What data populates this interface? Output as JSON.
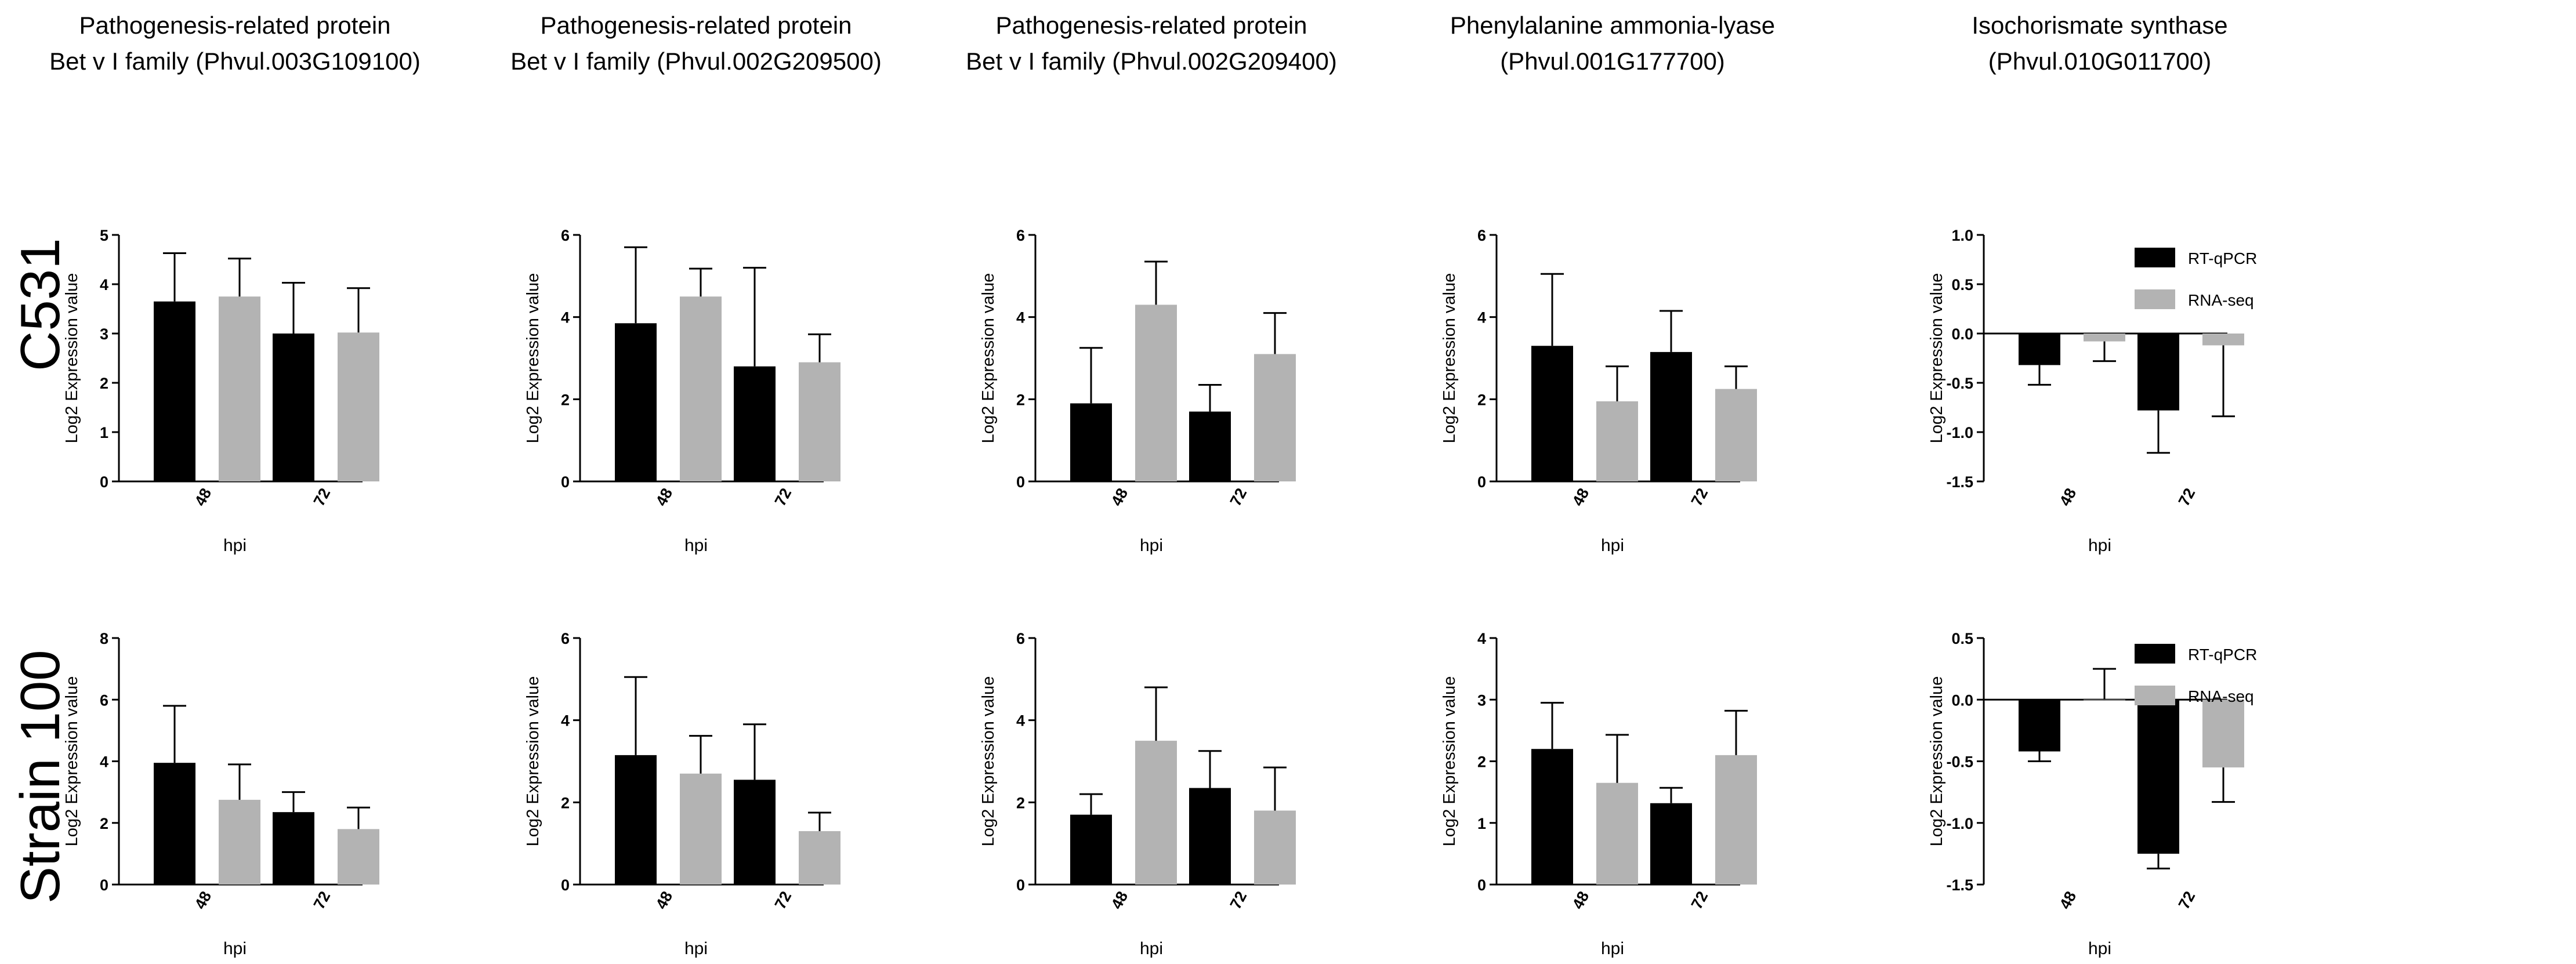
{
  "figure": {
    "rows": [
      "C531",
      "Strain 100"
    ],
    "xlabel": "hpi",
    "ylabel": "Log2 Expression value",
    "legend": [
      {
        "name": "RT-qPCR",
        "color": "#000000"
      },
      {
        "name": "RNA-seq",
        "color": "#b3b3b3"
      }
    ]
  },
  "chart_data": [
    {
      "type": "bar",
      "row": "C531",
      "col": 0,
      "title": "Pathogenesis-related protein Bet v I family (Phvul.003G109100)",
      "title_lines": [
        "Pathogenesis-related protein",
        "Bet v I family (Phvul.003G109100)"
      ],
      "categories": [
        "48",
        "72"
      ],
      "xlabel": "hpi",
      "ylabel": "Log2 Expression value",
      "ylim": [
        0,
        5
      ],
      "yticks": [
        0,
        1,
        2,
        3,
        4,
        5
      ],
      "ytick_labels": [
        "0",
        "1",
        "2",
        "3",
        "4",
        "5"
      ],
      "series": [
        {
          "name": "RT-qPCR",
          "values": [
            3.65,
            3.0
          ],
          "errors": [
            0.98,
            1.03
          ]
        },
        {
          "name": "RNA-seq",
          "values": [
            3.75,
            3.02
          ],
          "errors": [
            0.77,
            0.9
          ]
        }
      ]
    },
    {
      "type": "bar",
      "row": "C531",
      "col": 1,
      "title": "Pathogenesis-related protein Bet v I family (Phvul.002G209500)",
      "title_lines": [
        "Pathogenesis-related protein",
        "Bet v I family (Phvul.002G209500)"
      ],
      "categories": [
        "48",
        "72"
      ],
      "xlabel": "hpi",
      "ylabel": "Log2 Expression value",
      "ylim": [
        0,
        6
      ],
      "yticks": [
        0,
        2,
        4,
        6
      ],
      "ytick_labels": [
        "0",
        "2",
        "4",
        "6"
      ],
      "series": [
        {
          "name": "RT-qPCR",
          "values": [
            3.85,
            2.8
          ],
          "errors": [
            1.85,
            2.4
          ]
        },
        {
          "name": "RNA-seq",
          "values": [
            4.5,
            2.9
          ],
          "errors": [
            0.68,
            0.68
          ]
        }
      ]
    },
    {
      "type": "bar",
      "row": "C531",
      "col": 2,
      "title": "Pathogenesis-related protein Bet v I family (Phvul.002G209400)",
      "title_lines": [
        "Pathogenesis-related protein",
        "Bet v I family (Phvul.002G209400)"
      ],
      "categories": [
        "48",
        "72"
      ],
      "xlabel": "hpi",
      "ylabel": "Log2 Expression value",
      "ylim": [
        0,
        6
      ],
      "yticks": [
        0,
        2,
        4,
        6
      ],
      "ytick_labels": [
        "0",
        "2",
        "4",
        "6"
      ],
      "series": [
        {
          "name": "RT-qPCR",
          "values": [
            1.9,
            1.7
          ],
          "errors": [
            1.35,
            0.65
          ]
        },
        {
          "name": "RNA-seq",
          "values": [
            4.3,
            3.1
          ],
          "errors": [
            1.05,
            1.0
          ]
        }
      ]
    },
    {
      "type": "bar",
      "row": "C531",
      "col": 3,
      "title": "Phenylalanine ammonia-lyase (Phvul.001G177700)",
      "title_lines": [
        "Phenylalanine ammonia-lyase",
        "(Phvul.001G177700)"
      ],
      "categories": [
        "48",
        "72"
      ],
      "xlabel": "hpi",
      "ylabel": "Log2 Expression value",
      "ylim": [
        0,
        6
      ],
      "yticks": [
        0,
        2,
        4,
        6
      ],
      "ytick_labels": [
        "0",
        "2",
        "4",
        "6"
      ],
      "series": [
        {
          "name": "RT-qPCR",
          "values": [
            3.3,
            3.15
          ],
          "errors": [
            1.75,
            1.0
          ]
        },
        {
          "name": "RNA-seq",
          "values": [
            1.95,
            2.25
          ],
          "errors": [
            0.85,
            0.55
          ]
        }
      ]
    },
    {
      "type": "bar",
      "row": "C531",
      "col": 4,
      "title": "Isochorismate synthase (Phvul.010G011700)",
      "title_lines": [
        "Isochorismate synthase",
        "(Phvul.010G011700)"
      ],
      "categories": [
        "48",
        "72"
      ],
      "xlabel": "hpi",
      "ylabel": "Log2 Expression value",
      "ylim": [
        -1.5,
        1.0
      ],
      "yticks": [
        -1.5,
        -1.0,
        -0.5,
        0.0,
        0.5,
        1.0
      ],
      "ytick_labels": [
        "-1.5",
        "-1.0",
        "-0.5",
        "0.0",
        "0.5",
        "1.0"
      ],
      "series": [
        {
          "name": "RT-qPCR",
          "values": [
            -0.32,
            -0.78
          ],
          "errors": [
            0.2,
            0.43
          ]
        },
        {
          "name": "RNA-seq",
          "values": [
            -0.08,
            -0.12
          ],
          "errors": [
            0.2,
            0.72
          ]
        }
      ]
    },
    {
      "type": "bar",
      "row": "Strain 100",
      "col": 0,
      "title": "",
      "categories": [
        "48",
        "72"
      ],
      "xlabel": "hpi",
      "ylabel": "Log2 Expression value",
      "ylim": [
        0,
        8
      ],
      "yticks": [
        0,
        2,
        4,
        6,
        8
      ],
      "ytick_labels": [
        "0",
        "2",
        "4",
        "6",
        "8"
      ],
      "series": [
        {
          "name": "RT-qPCR",
          "values": [
            3.95,
            2.35
          ],
          "errors": [
            1.85,
            0.65
          ]
        },
        {
          "name": "RNA-seq",
          "values": [
            2.75,
            1.8
          ],
          "errors": [
            1.15,
            0.7
          ]
        }
      ]
    },
    {
      "type": "bar",
      "row": "Strain 100",
      "col": 1,
      "title": "",
      "categories": [
        "48",
        "72"
      ],
      "xlabel": "hpi",
      "ylabel": "Log2 Expression value",
      "ylim": [
        0,
        6
      ],
      "yticks": [
        0,
        2,
        4,
        6
      ],
      "ytick_labels": [
        "0",
        "2",
        "4",
        "6"
      ],
      "series": [
        {
          "name": "RT-qPCR",
          "values": [
            3.15,
            2.55
          ],
          "errors": [
            1.9,
            1.35
          ]
        },
        {
          "name": "RNA-seq",
          "values": [
            2.7,
            1.3
          ],
          "errors": [
            0.92,
            0.45
          ]
        }
      ]
    },
    {
      "type": "bar",
      "row": "Strain 100",
      "col": 2,
      "title": "",
      "categories": [
        "48",
        "72"
      ],
      "xlabel": "hpi",
      "ylabel": "Log2 Expression value",
      "ylim": [
        0,
        6
      ],
      "yticks": [
        0,
        2,
        4,
        6
      ],
      "ytick_labels": [
        "0",
        "2",
        "4",
        "6"
      ],
      "series": [
        {
          "name": "RT-qPCR",
          "values": [
            1.7,
            2.35
          ],
          "errors": [
            0.5,
            0.9
          ]
        },
        {
          "name": "RNA-seq",
          "values": [
            3.5,
            1.8
          ],
          "errors": [
            1.3,
            1.05
          ]
        }
      ]
    },
    {
      "type": "bar",
      "row": "Strain 100",
      "col": 3,
      "title": "",
      "categories": [
        "48",
        "72"
      ],
      "xlabel": "hpi",
      "ylabel": "Log2 Expression value",
      "ylim": [
        0,
        4
      ],
      "yticks": [
        0,
        1,
        2,
        3,
        4
      ],
      "ytick_labels": [
        "0",
        "1",
        "2",
        "3",
        "4"
      ],
      "series": [
        {
          "name": "RT-qPCR",
          "values": [
            2.2,
            1.32
          ],
          "errors": [
            0.75,
            0.25
          ]
        },
        {
          "name": "RNA-seq",
          "values": [
            1.65,
            2.1
          ],
          "errors": [
            0.78,
            0.72
          ]
        }
      ]
    },
    {
      "type": "bar",
      "row": "Strain 100",
      "col": 4,
      "title": "",
      "categories": [
        "48",
        "72"
      ],
      "xlabel": "hpi",
      "ylabel": "Log2 Expression value",
      "ylim": [
        -1.5,
        0.5
      ],
      "yticks": [
        -1.5,
        -1.0,
        -0.5,
        0.0,
        0.5
      ],
      "ytick_labels": [
        "-1.5",
        "-1.0",
        "-0.5",
        "0.0",
        "0.5"
      ],
      "series": [
        {
          "name": "RT-qPCR",
          "values": [
            -0.42,
            -1.25
          ],
          "errors": [
            0.08,
            0.12
          ]
        },
        {
          "name": "RNA-seq",
          "values": [
            0.0,
            -0.55
          ],
          "errors": [
            0.25,
            0.28
          ]
        }
      ]
    }
  ]
}
